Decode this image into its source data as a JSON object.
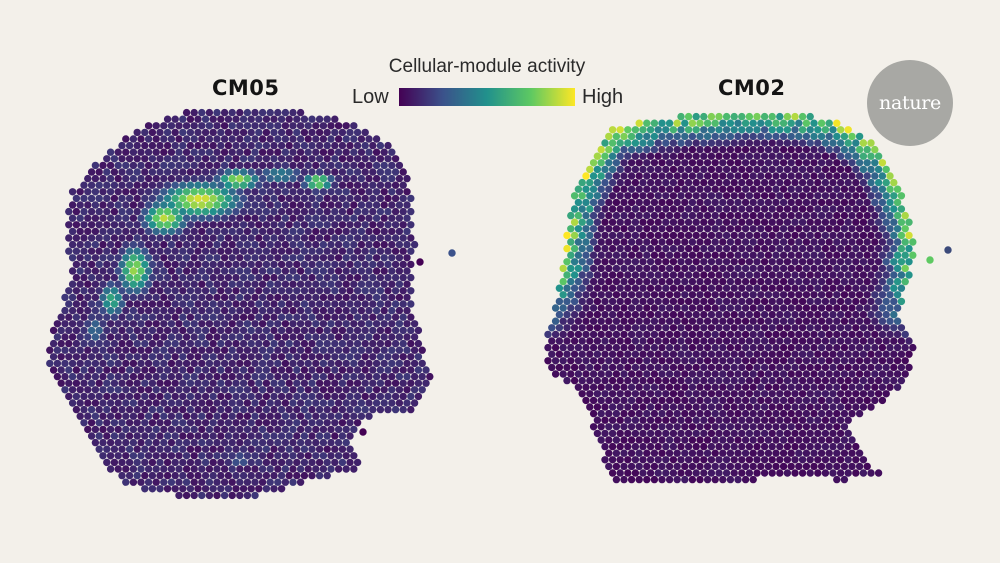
{
  "legend": {
    "title": "Cellular-module activity",
    "low_label": "Low",
    "high_label": "High",
    "colormap": [
      "#440154",
      "#3b528b",
      "#21918c",
      "#5ec962",
      "#fde725"
    ]
  },
  "logo": {
    "text": "nature",
    "color": "#a8a8a4"
  },
  "colors": {
    "background": "#f3f0ea"
  },
  "chart_data": [
    {
      "type": "heatmap",
      "title": "CM05",
      "value_range": [
        0,
        1
      ],
      "description_of_values": "activity per spot, low to high",
      "baseline_activity": 0.05,
      "high_activity_regions": [
        {
          "location": "upper-center band",
          "activity": 0.95
        },
        {
          "location": "upper-right patch",
          "activity": 0.85
        },
        {
          "location": "left-middle patch",
          "activity": 0.85
        },
        {
          "location": "left edge diffuse",
          "activity": 0.4
        },
        {
          "location": "lower-center faint",
          "activity": 0.25
        }
      ]
    },
    {
      "type": "heatmap",
      "title": "CM02",
      "value_range": [
        0,
        1
      ],
      "description_of_values": "activity per spot, low to high",
      "baseline_activity": 0.02,
      "high_activity_regions": [
        {
          "location": "outer top/left/right rim",
          "activity": 0.9
        }
      ]
    }
  ]
}
